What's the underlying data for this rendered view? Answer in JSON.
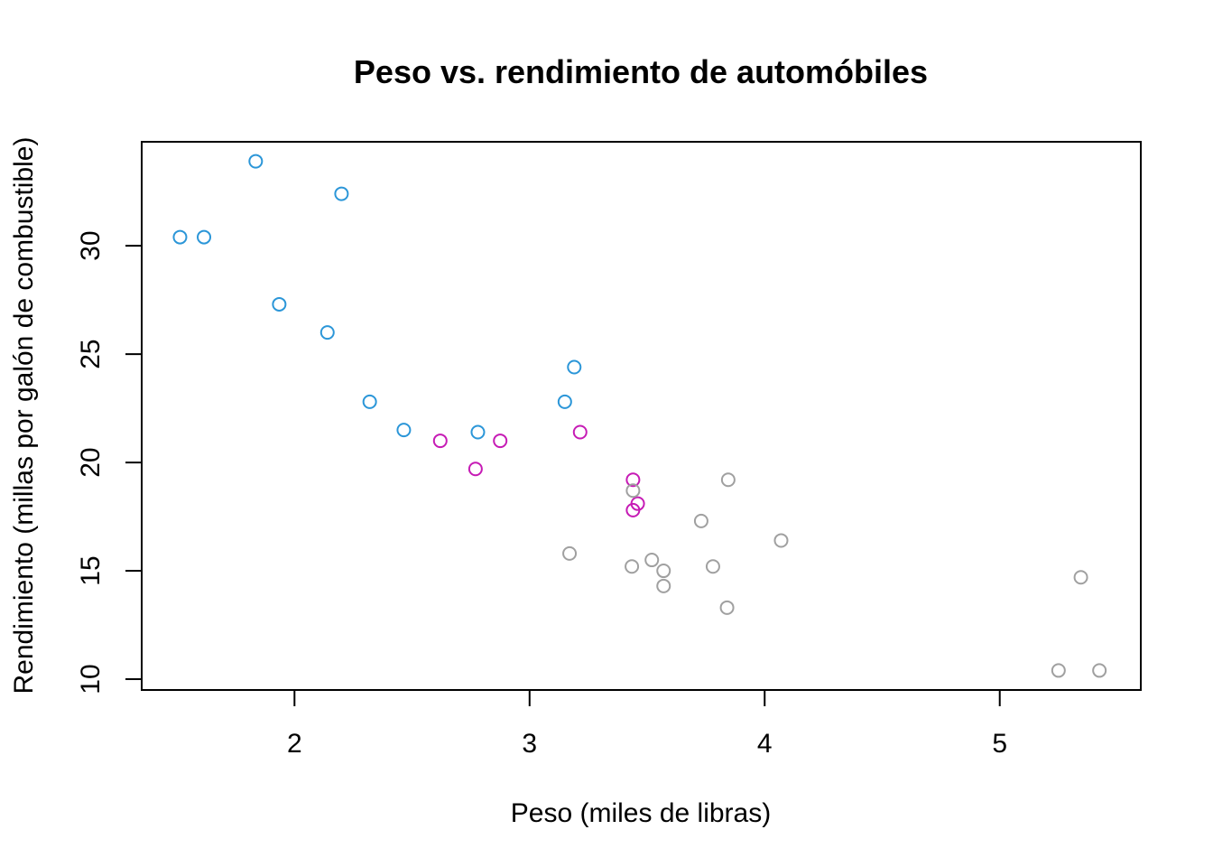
{
  "chart_data": {
    "type": "scatter",
    "title": "Peso vs. rendimiento de automóbiles",
    "xlabel": "Peso (miles de libras)",
    "ylabel": "Rendimiento (millas por galón de combustible)",
    "xlim": [
      1.35,
      5.6
    ],
    "ylim": [
      9.5,
      34.8
    ],
    "xticks": [
      2,
      3,
      4,
      5
    ],
    "yticks": [
      10,
      15,
      20,
      25,
      30
    ],
    "grid": false,
    "legend": "none",
    "series": [
      {
        "color": "#2b96d8",
        "points": [
          {
            "x": 1.513,
            "y": 30.4
          },
          {
            "x": 1.615,
            "y": 30.4
          },
          {
            "x": 1.835,
            "y": 33.9
          },
          {
            "x": 1.935,
            "y": 27.3
          },
          {
            "x": 2.14,
            "y": 26.0
          },
          {
            "x": 2.2,
            "y": 32.4
          },
          {
            "x": 2.32,
            "y": 22.8
          },
          {
            "x": 2.465,
            "y": 21.5
          },
          {
            "x": 2.78,
            "y": 21.4
          },
          {
            "x": 3.15,
            "y": 22.8
          },
          {
            "x": 3.19,
            "y": 24.4
          }
        ]
      },
      {
        "color": "#c61bb5",
        "points": [
          {
            "x": 2.62,
            "y": 21.0
          },
          {
            "x": 2.77,
            "y": 19.7
          },
          {
            "x": 2.875,
            "y": 21.0
          },
          {
            "x": 3.215,
            "y": 21.4
          },
          {
            "x": 3.44,
            "y": 19.2
          },
          {
            "x": 3.44,
            "y": 17.8
          },
          {
            "x": 3.46,
            "y": 18.1
          }
        ]
      },
      {
        "color": "#a0a0a0",
        "points": [
          {
            "x": 3.17,
            "y": 15.8
          },
          {
            "x": 3.435,
            "y": 15.2
          },
          {
            "x": 3.44,
            "y": 18.7
          },
          {
            "x": 3.52,
            "y": 15.5
          },
          {
            "x": 3.57,
            "y": 15.0
          },
          {
            "x": 3.57,
            "y": 14.3
          },
          {
            "x": 3.73,
            "y": 17.3
          },
          {
            "x": 3.78,
            "y": 15.2
          },
          {
            "x": 3.84,
            "y": 13.3
          },
          {
            "x": 3.845,
            "y": 19.2
          },
          {
            "x": 4.07,
            "y": 16.4
          },
          {
            "x": 5.25,
            "y": 10.4
          },
          {
            "x": 5.345,
            "y": 14.7
          },
          {
            "x": 5.424,
            "y": 10.4
          }
        ]
      }
    ]
  }
}
